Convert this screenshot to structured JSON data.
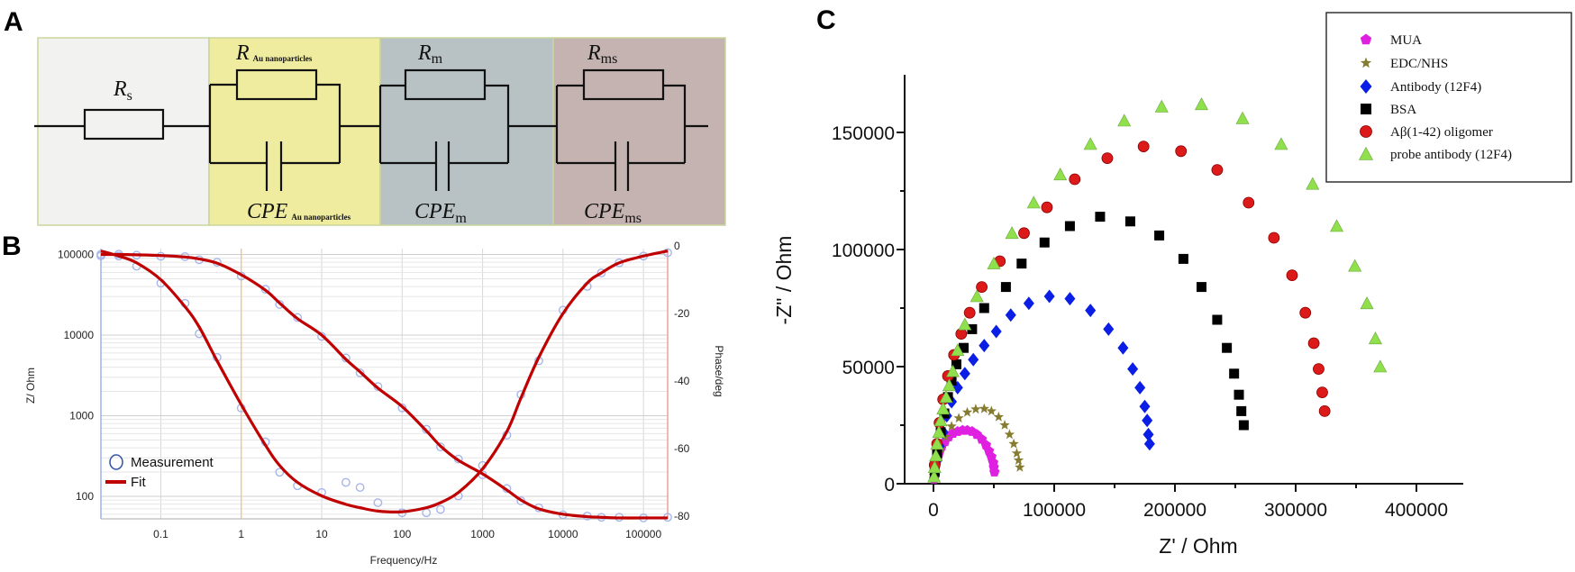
{
  "panel_labels": {
    "a": "A",
    "b": "B",
    "c": "C"
  },
  "circuit": {
    "colors": {
      "block1": "#f2f2f1",
      "block2": "#efec9f",
      "block3": "#b8c2c4",
      "block4": "#c5b3b1",
      "border": "#c9d59c"
    },
    "elements": {
      "rs": {
        "main": "R",
        "sub": "s"
      },
      "r_au": {
        "main": "R",
        "sub": "Au nanoparticles"
      },
      "rm": {
        "main": "R",
        "sub": "m"
      },
      "rms": {
        "main": "R",
        "sub": "ms"
      },
      "cpe_au": {
        "main": "CPE",
        "sub": "Au nanoparticles"
      },
      "cpe_m": {
        "main": "CPE",
        "sub": "m"
      },
      "cpe_ms": {
        "main": "CPE",
        "sub": "ms"
      }
    }
  },
  "chart_data": [
    {
      "type": "line",
      "panel": "B",
      "title": "",
      "xlabel": "Frequency/Hz",
      "ylabel": "Z/ Ohm",
      "y2label": "Phase/deg",
      "xscale": "log",
      "yscale": "log",
      "xlim": [
        0.018,
        200000
      ],
      "ylim": [
        52,
        117000
      ],
      "y2lim": [
        -80,
        0
      ],
      "xticks": [
        "0.1",
        "1",
        "10",
        "100",
        "1000",
        "10000",
        "100000"
      ],
      "xtick_values": [
        0.1,
        1,
        10,
        100,
        1000,
        10000,
        100000
      ],
      "yticks": [
        "100000",
        "10000",
        "1000",
        "100"
      ],
      "ytick_values": [
        100000,
        10000,
        1000,
        100
      ],
      "y2ticks": [
        "0",
        "-20",
        "-40",
        "-60",
        "-80"
      ],
      "y2tick_values": [
        0,
        -20,
        -40,
        -60,
        -80
      ],
      "grid": true,
      "legend": {
        "placement": "bottom-left",
        "entries": [
          "Measurement",
          "Fit"
        ]
      },
      "colors": {
        "fit": "#c00000",
        "measurement": "#a7b6ea",
        "left_axis": "#9fb0ee",
        "right_axis": "#e6a0a0",
        "marker_line": "#f0c080"
      },
      "frequency": [
        0.018,
        0.03,
        0.05,
        0.1,
        0.2,
        0.3,
        0.5,
        1,
        2,
        3,
        5,
        10,
        20,
        30,
        50,
        100,
        200,
        300,
        500,
        1000,
        2000,
        3000,
        5000,
        10000,
        20000,
        30000,
        50000,
        100000,
        200000
      ],
      "series": [
        {
          "name": "Fit |Z|",
          "axis": "left",
          "values": [
            100000,
            100000,
            99000,
            97000,
            93000,
            88000,
            78000,
            56000,
            36000,
            25000,
            16000,
            10000,
            5000,
            3500,
            2200,
            1300,
            650,
            420,
            280,
            190,
            120,
            90,
            70,
            60,
            56,
            55,
            54,
            54,
            54
          ]
        },
        {
          "name": "Fit phase",
          "axis": "right",
          "values": [
            -1.5,
            -3,
            -5,
            -10,
            -18,
            -24,
            -34,
            -47,
            -59,
            -65,
            -70,
            -74,
            -76.5,
            -77.5,
            -78.5,
            -78.7,
            -77.5,
            -76,
            -73,
            -66,
            -55,
            -45,
            -33,
            -20,
            -11,
            -8,
            -5,
            -3,
            -1.5
          ]
        },
        {
          "name": "Measurement |Z|",
          "axis": "left",
          "values": [
            96000,
            101000,
            98000,
            95000,
            94000,
            86000,
            80000,
            54000,
            37000,
            24000,
            16500,
            9600,
            5200,
            3400,
            2300,
            1250,
            680,
            410,
            290,
            185,
            125,
            88,
            72,
            59,
            57,
            55,
            55,
            54,
            55
          ]
        },
        {
          "name": "Measurement phase",
          "axis": "right",
          "values": [
            -2.5,
            -3,
            -6,
            -11,
            -17,
            -26,
            -33,
            -48,
            -58,
            -67,
            -71,
            -73,
            -70,
            -71.5,
            -76,
            -79,
            -79,
            -78,
            -74,
            -65,
            -56,
            -44,
            -34,
            -19,
            -12,
            -8,
            -5,
            -3,
            -2
          ]
        }
      ]
    },
    {
      "type": "scatter",
      "panel": "C",
      "title": "",
      "xlabel": "Z' / Ohm",
      "ylabel": "-Z\" / Ohm",
      "xlim": [
        -15000,
        440000
      ],
      "ylim": [
        0,
        175000
      ],
      "xticks": [
        "0",
        "100000",
        "200000",
        "300000",
        "400000"
      ],
      "xtick_values": [
        0,
        100000,
        200000,
        300000,
        400000
      ],
      "yticks": [
        "0",
        "50000",
        "100000",
        "150000"
      ],
      "ytick_values": [
        0,
        50000,
        100000,
        150000
      ],
      "grid": false,
      "legend": {
        "placement": "top-right"
      },
      "series": [
        {
          "name": "MUA",
          "marker": "pentagon",
          "color": "#e020e0",
          "x": [
            500,
            1000,
            2000,
            3500,
            5000,
            7000,
            9500,
            12500,
            16000,
            20000,
            24000,
            28000,
            32000,
            36000,
            40000,
            43500,
            46000,
            48000,
            49500,
            50000,
            50500
          ],
          "y": [
            2000,
            5000,
            8000,
            11000,
            13500,
            16000,
            18000,
            20000,
            21500,
            22300,
            22800,
            22800,
            22300,
            21000,
            19000,
            16500,
            14000,
            11500,
            9000,
            7000,
            5000
          ]
        },
        {
          "name": "EDC/NHS",
          "marker": "star",
          "color": "#857c30",
          "x": [
            1000,
            3000,
            6000,
            10000,
            15000,
            21000,
            28000,
            35000,
            42000,
            48000,
            54000,
            59000,
            63000,
            66500,
            69000,
            70500,
            71500
          ],
          "y": [
            3000,
            9000,
            15000,
            20000,
            24500,
            28000,
            30500,
            31800,
            32000,
            31000,
            28500,
            25000,
            21000,
            17000,
            13000,
            10000,
            7000
          ]
        },
        {
          "name": "Antibody (12F4)",
          "marker": "diamond",
          "color": "#0a1ee6",
          "x": [
            1000,
            3000,
            5000,
            8000,
            11000,
            15000,
            20000,
            26000,
            33000,
            42000,
            52000,
            64000,
            79000,
            96000,
            113000,
            130000,
            145000,
            157000,
            165000,
            171000,
            175000,
            177000,
            178000,
            179000
          ],
          "y": [
            4000,
            10000,
            16000,
            22000,
            29000,
            35000,
            41000,
            47000,
            53000,
            59000,
            65000,
            72000,
            77000,
            80000,
            79000,
            74000,
            66000,
            58000,
            49000,
            41000,
            33000,
            27000,
            21000,
            17000
          ]
        },
        {
          "name": "BSA",
          "marker": "square",
          "color": "#000000",
          "x": [
            1000,
            3000,
            6000,
            9000,
            12000,
            15000,
            19000,
            25000,
            32000,
            42000,
            60000,
            73000,
            92000,
            113000,
            138000,
            163000,
            187000,
            207000,
            222000,
            235000,
            243000,
            249000,
            253000,
            255000,
            257000
          ],
          "y": [
            5000,
            13000,
            22000,
            30000,
            37000,
            44000,
            51000,
            58000,
            66000,
            75000,
            84000,
            94000,
            103000,
            110000,
            114000,
            112000,
            106000,
            96000,
            84000,
            70000,
            58000,
            47000,
            38000,
            31000,
            25000
          ]
        },
        {
          "name": "Aβ(1-42) oligomer",
          "marker": "circle",
          "color": "#dd1a1a",
          "x": [
            1000,
            3000,
            5000,
            8000,
            12000,
            17000,
            23000,
            30000,
            40000,
            55000,
            75000,
            94000,
            117000,
            144000,
            174000,
            205000,
            235000,
            261000,
            282000,
            297000,
            308000,
            315000,
            319000,
            322000,
            324000
          ],
          "y": [
            8000,
            17000,
            26000,
            36000,
            46000,
            55000,
            64000,
            73000,
            84000,
            95000,
            107000,
            118000,
            130000,
            139000,
            144000,
            142000,
            134000,
            120000,
            105000,
            89000,
            73000,
            60000,
            49000,
            39000,
            31000
          ]
        },
        {
          "name": "probe antibody (12F4)",
          "marker": "triangle",
          "color": "#8fe04c",
          "x": [
            500,
            1000,
            2000,
            3000,
            4500,
            6000,
            8000,
            10500,
            13000,
            16000,
            20000,
            26000,
            36000,
            50000,
            65000,
            83000,
            105000,
            130000,
            158000,
            189000,
            222000,
            256000,
            288000,
            314000,
            334000,
            349000,
            359000,
            366000,
            370000
          ],
          "y": [
            3000,
            7000,
            12000,
            17000,
            22000,
            27000,
            32000,
            37000,
            42000,
            48000,
            57000,
            68000,
            80000,
            94000,
            107000,
            120000,
            132000,
            145000,
            155000,
            161000,
            162000,
            156000,
            145000,
            128000,
            110000,
            93000,
            77000,
            62000,
            50000
          ]
        }
      ]
    }
  ]
}
